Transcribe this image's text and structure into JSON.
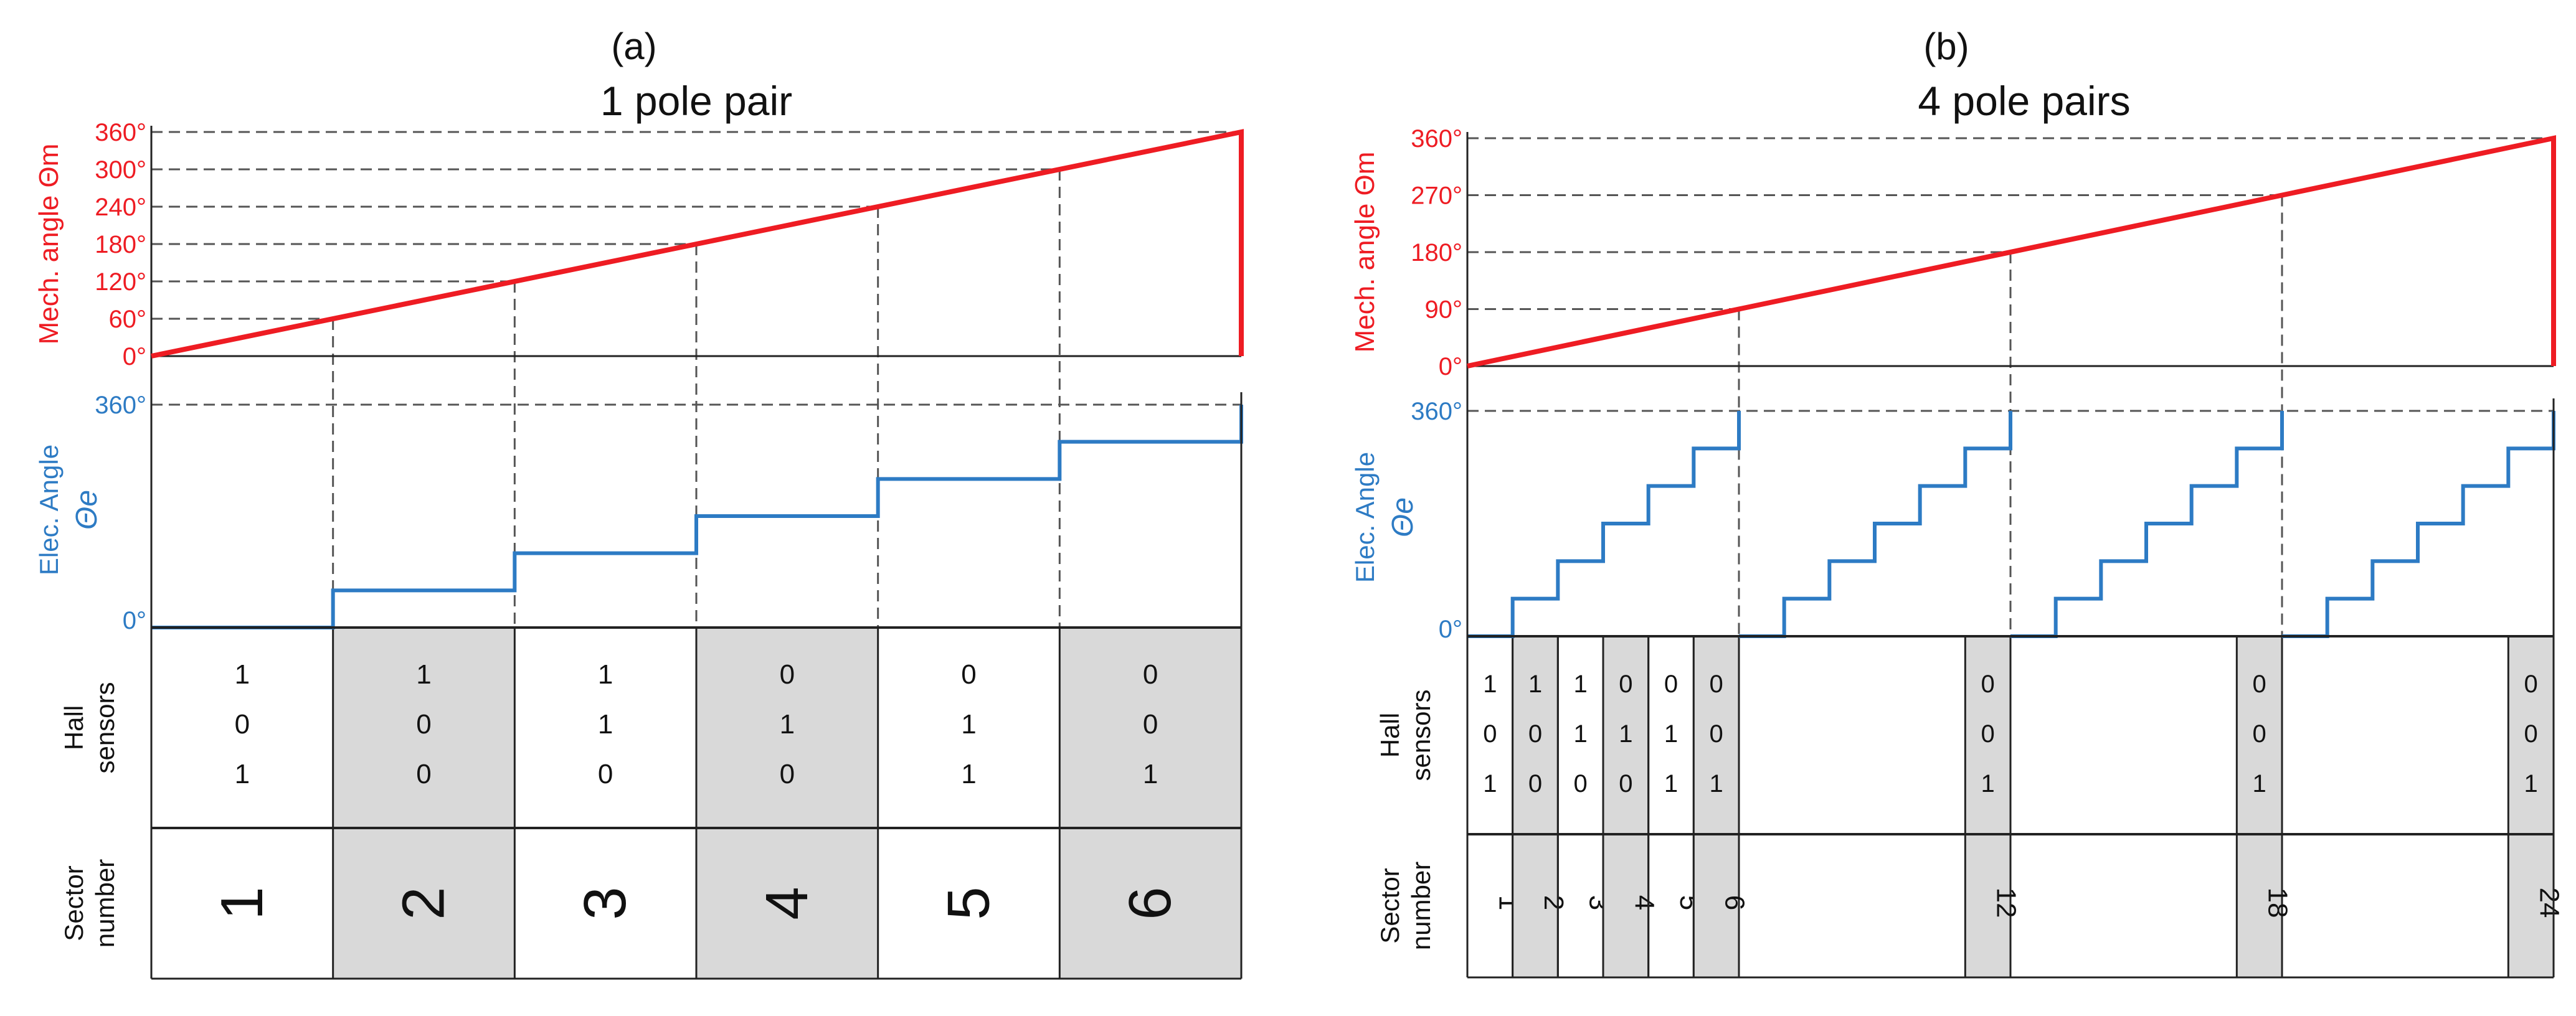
{
  "colors": {
    "mech": "#ee1c23",
    "elec": "#2d7bc4",
    "cell_shade": "#d9d9d9",
    "text": "#111111",
    "grid": "#555555"
  },
  "panels": [
    {
      "id": "a",
      "panel_label": "(a)",
      "title": "1 pole pair",
      "pole_pairs": 1,
      "mech_axis_label": "Mech. angle Θm",
      "mech_ticks": [
        "0°",
        "60°",
        "120°",
        "180°",
        "240°",
        "300°",
        "360°"
      ],
      "mech_tick_values": [
        0,
        60,
        120,
        180,
        240,
        300,
        360
      ],
      "elec_axis_label_1": "Elec. Angle",
      "elec_axis_label_2": "Θe",
      "elec_ticks": [
        "0°",
        "360°"
      ],
      "hall_label_1": "Hall",
      "hall_label_2": "sensors",
      "sector_label_1": "Sector",
      "sector_label_2": "number",
      "columns": [
        {
          "hall": [
            "1",
            "0",
            "1"
          ],
          "sector": "1",
          "shaded": false
        },
        {
          "hall": [
            "1",
            "0",
            "0"
          ],
          "sector": "2",
          "shaded": true
        },
        {
          "hall": [
            "1",
            "1",
            "0"
          ],
          "sector": "3",
          "shaded": false
        },
        {
          "hall": [
            "0",
            "1",
            "0"
          ],
          "sector": "4",
          "shaded": false,
          "shaded2": true
        },
        {
          "hall": [
            "0",
            "1",
            "1"
          ],
          "sector": "5",
          "shaded": false
        },
        {
          "hall": [
            "0",
            "0",
            "1"
          ],
          "sector": "6",
          "shaded": true
        }
      ]
    },
    {
      "id": "b",
      "panel_label": "(b)",
      "title": "4 pole pairs",
      "pole_pairs": 4,
      "mech_axis_label": "Mech. angle Θm",
      "mech_ticks": [
        "0°",
        "90°",
        "180°",
        "270°",
        "360°"
      ],
      "mech_tick_values": [
        0,
        90,
        180,
        270,
        360
      ],
      "elec_axis_label_1": "Elec. Angle",
      "elec_axis_label_2": "Θe",
      "elec_ticks": [
        "0°",
        "360°"
      ],
      "hall_label_1": "Hall",
      "hall_label_2": "sensors",
      "sector_label_1": "Sector",
      "sector_label_2": "number",
      "columns": [
        {
          "hall": [
            "1",
            "0",
            "1"
          ],
          "sector": "1",
          "shaded": false
        },
        {
          "hall": [
            "1",
            "0",
            "0"
          ],
          "sector": "2",
          "shaded": true
        },
        {
          "hall": [
            "1",
            "1",
            "0"
          ],
          "sector": "3",
          "shaded": false
        },
        {
          "hall": [
            "0",
            "1",
            "0"
          ],
          "sector": "4",
          "shaded": true
        },
        {
          "hall": [
            "0",
            "1",
            "1"
          ],
          "sector": "5",
          "shaded": false
        },
        {
          "hall": [
            "0",
            "0",
            "1"
          ],
          "sector": "6",
          "shaded": true
        }
      ],
      "extra_columns": [
        {
          "hall": [
            "0",
            "0",
            "1"
          ],
          "sector": "12",
          "shaded": true
        },
        {
          "hall": [
            "0",
            "0",
            "1"
          ],
          "sector": "18",
          "shaded": true
        },
        {
          "hall": [
            "0",
            "0",
            "1"
          ],
          "sector": "24",
          "shaded": true
        }
      ]
    }
  ]
}
